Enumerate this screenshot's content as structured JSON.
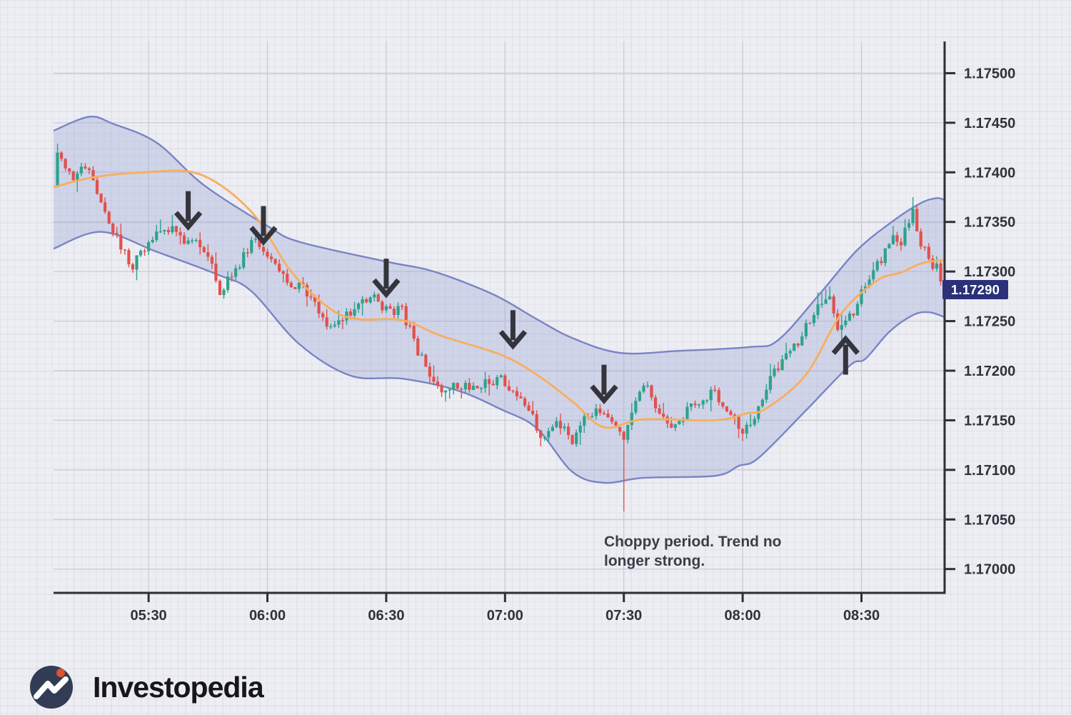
{
  "branding": {
    "name": "Investopedia"
  },
  "chart_data": {
    "type": "candlestick",
    "title": "",
    "legend_position": "none",
    "grid": "on",
    "annotation": {
      "line1": "Choppy period. Trend no",
      "line2": "longer strong.",
      "anchor_time": "07:25",
      "anchor_price": 1.17037
    },
    "last_price": 1.1729,
    "last_price_label": "1.17290",
    "x_axis": {
      "tick_labels": [
        "05:30",
        "06:00",
        "06:30",
        "07:00",
        "07:30",
        "08:00",
        "08:30"
      ],
      "start": "05:06",
      "end": "08:51",
      "first_candle": "05:07",
      "last_candle": "08:50",
      "candle_interval_min": 1
    },
    "y_axis": {
      "tick_labels": [
        "1.17500",
        "1.17450",
        "1.17400",
        "1.17350",
        "1.17300",
        "1.17250",
        "1.17200",
        "1.17150",
        "1.17100",
        "1.17050",
        "1.17000"
      ],
      "min": 1.16976,
      "max": 1.17532
    },
    "first_open": 1.17385,
    "close_path": [
      [
        "05:07",
        1.1742
      ],
      [
        "05:11",
        1.17395
      ],
      [
        "05:14",
        1.17405
      ],
      [
        "05:18",
        1.17375
      ],
      [
        "05:21",
        1.1734
      ],
      [
        "05:26",
        1.17305
      ],
      [
        "05:30",
        1.1733
      ],
      [
        "05:35",
        1.17345
      ],
      [
        "05:40",
        1.1733
      ],
      [
        "05:44",
        1.17325
      ],
      [
        "05:48",
        1.1728
      ],
      [
        "05:52",
        1.173
      ],
      [
        "05:57",
        1.17335
      ],
      [
        "06:01",
        1.1731
      ],
      [
        "06:05",
        1.1729
      ],
      [
        "06:08",
        1.17285
      ],
      [
        "06:12",
        1.1727
      ],
      [
        "06:16",
        1.1724
      ],
      [
        "06:19",
        1.1725
      ],
      [
        "06:23",
        1.1727
      ],
      [
        "06:26",
        1.17275
      ],
      [
        "06:30",
        1.17262
      ],
      [
        "06:34",
        1.1726
      ],
      [
        "06:37",
        1.1723
      ],
      [
        "06:41",
        1.17192
      ],
      [
        "06:44",
        1.1718
      ],
      [
        "06:48",
        1.17186
      ],
      [
        "06:52",
        1.1718
      ],
      [
        "06:55",
        1.17186
      ],
      [
        "06:59",
        1.17192
      ],
      [
        "07:02",
        1.1718
      ],
      [
        "07:06",
        1.1716
      ],
      [
        "07:10",
        1.1713
      ],
      [
        "07:13",
        1.1715
      ],
      [
        "07:17",
        1.1713
      ],
      [
        "07:20",
        1.1715
      ],
      [
        "07:24",
        1.1716
      ],
      [
        "07:27",
        1.1715
      ],
      [
        "07:30",
        1.1713
      ],
      [
        "07:33",
        1.1717
      ],
      [
        "07:35",
        1.1719
      ],
      [
        "07:38",
        1.1716
      ],
      [
        "07:42",
        1.1714
      ],
      [
        "07:46",
        1.1716
      ],
      [
        "07:49",
        1.1717
      ],
      [
        "07:53",
        1.1718
      ],
      [
        "07:56",
        1.1716
      ],
      [
        "08:00",
        1.1714
      ],
      [
        "08:04",
        1.1716
      ],
      [
        "08:07",
        1.1719
      ],
      [
        "08:11",
        1.1722
      ],
      [
        "08:14",
        1.1723
      ],
      [
        "08:18",
        1.1726
      ],
      [
        "08:22",
        1.1727
      ],
      [
        "08:24",
        1.1724
      ],
      [
        "08:28",
        1.1726
      ],
      [
        "08:31",
        1.1729
      ],
      [
        "08:35",
        1.1731
      ],
      [
        "08:38",
        1.1734
      ],
      [
        "08:40",
        1.1733
      ],
      [
        "08:43",
        1.1736
      ],
      [
        "08:45",
        1.1733
      ],
      [
        "08:47",
        1.1731
      ],
      [
        "08:49",
        1.17305
      ],
      [
        "08:50",
        1.1729
      ]
    ],
    "ma_line": [
      [
        "05:06",
        1.17385
      ],
      [
        "05:16",
        1.17395
      ],
      [
        "05:29",
        1.174
      ],
      [
        "05:43",
        1.17398
      ],
      [
        "05:56",
        1.1736
      ],
      [
        "06:06",
        1.173
      ],
      [
        "06:16",
        1.17262
      ],
      [
        "06:23",
        1.17252
      ],
      [
        "06:34",
        1.17251
      ],
      [
        "06:44",
        1.17235
      ],
      [
        "06:59",
        1.17216
      ],
      [
        "07:08",
        1.17196
      ],
      [
        "07:17",
        1.17169
      ],
      [
        "07:25",
        1.17143
      ],
      [
        "07:35",
        1.17151
      ],
      [
        "07:53",
        1.1715
      ],
      [
        "08:01",
        1.17157
      ],
      [
        "08:06",
        1.17162
      ],
      [
        "08:16",
        1.17196
      ],
      [
        "08:25",
        1.17258
      ],
      [
        "08:34",
        1.17291
      ],
      [
        "08:40",
        1.17299
      ],
      [
        "08:45",
        1.17308
      ],
      [
        "08:51",
        1.17312
      ]
    ],
    "band_upper": [
      [
        "05:06",
        1.17442
      ],
      [
        "05:15",
        1.17456
      ],
      [
        "05:21",
        1.17449
      ],
      [
        "05:32",
        1.1743
      ],
      [
        "05:44",
        1.17387
      ],
      [
        "06:00",
        1.17346
      ],
      [
        "06:08",
        1.1733
      ],
      [
        "06:30",
        1.1731
      ],
      [
        "06:42",
        1.173
      ],
      [
        "06:57",
        1.17277
      ],
      [
        "07:08",
        1.17252
      ],
      [
        "07:17",
        1.17233
      ],
      [
        "07:29",
        1.17218
      ],
      [
        "07:44",
        1.1722
      ],
      [
        "08:02",
        1.17224
      ],
      [
        "08:09",
        1.17231
      ],
      [
        "08:20",
        1.1728
      ],
      [
        "08:29",
        1.17322
      ],
      [
        "08:38",
        1.17351
      ],
      [
        "08:45",
        1.17369
      ],
      [
        "08:49",
        1.17374
      ],
      [
        "08:51",
        1.17372
      ]
    ],
    "band_lower": [
      [
        "05:06",
        1.17323
      ],
      [
        "05:18",
        1.1734
      ],
      [
        "05:32",
        1.1732
      ],
      [
        "05:48",
        1.17296
      ],
      [
        "05:56",
        1.1728
      ],
      [
        "06:08",
        1.17227
      ],
      [
        "06:21",
        1.17195
      ],
      [
        "06:34",
        1.17192
      ],
      [
        "06:48",
        1.1718
      ],
      [
        "06:59",
        1.17161
      ],
      [
        "07:08",
        1.17142
      ],
      [
        "07:17",
        1.17098
      ],
      [
        "07:25",
        1.17087
      ],
      [
        "07:35",
        1.17092
      ],
      [
        "07:53",
        1.17094
      ],
      [
        "07:59",
        1.17104
      ],
      [
        "08:04",
        1.17112
      ],
      [
        "08:16",
        1.1716
      ],
      [
        "08:27",
        1.17205
      ],
      [
        "08:31",
        1.17212
      ],
      [
        "08:37",
        1.17239
      ],
      [
        "08:43",
        1.17256
      ],
      [
        "08:47",
        1.17259
      ],
      [
        "08:51",
        1.17254
      ]
    ],
    "special_wicks": [
      {
        "time": "07:30",
        "low": 1.17058
      },
      {
        "time": "08:43",
        "high": 1.17375
      }
    ],
    "arrows": [
      {
        "direction": "down",
        "time": "05:40",
        "tip_price": 1.17345
      },
      {
        "direction": "down",
        "time": "05:59",
        "tip_price": 1.1733
      },
      {
        "direction": "down",
        "time": "06:30",
        "tip_price": 1.17277
      },
      {
        "direction": "down",
        "time": "07:02",
        "tip_price": 1.17225
      },
      {
        "direction": "down",
        "time": "07:25",
        "tip_price": 1.1717
      },
      {
        "direction": "up",
        "time": "08:26",
        "tip_price": 1.17232
      }
    ],
    "colors": {
      "background": "#edeef3",
      "grid_minor": "#e2e3ec",
      "grid_medium": "#d9dae5",
      "grid_major": "#c9cad6",
      "axis": "#2e2f37",
      "bull": "#2ea28c",
      "bear": "#e1514d",
      "band_line": "#7a84c4",
      "band_fill": "rgba(164,173,214,0.40)",
      "ma_line": "#f8ae5d",
      "arrow": "#34353c",
      "annotation_text": "#3c3d46",
      "badge_bg": "#2b3178",
      "badge_text": "#ffffff",
      "logo_circle": "#323c54",
      "logo_dot": "#e0512f",
      "logo_text": "#17171a"
    }
  }
}
